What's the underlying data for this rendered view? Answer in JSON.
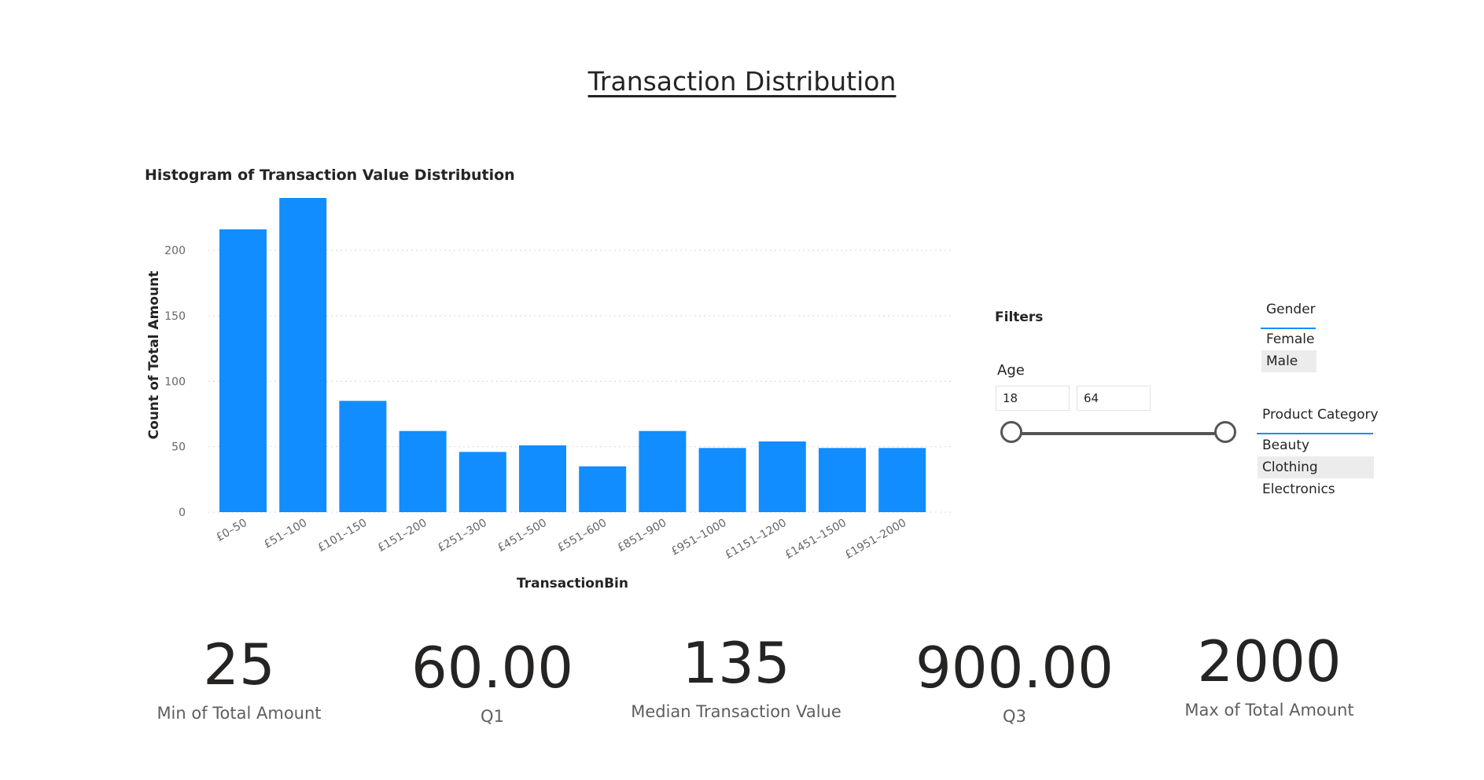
{
  "page": {
    "title": "Transaction Distribution"
  },
  "chart_data": {
    "type": "bar",
    "title": "Histogram of Transaction Value Distribution",
    "xlabel": "TransactionBin",
    "ylabel": "Count of Total Amount",
    "categories": [
      "£0–50",
      "£51–100",
      "£101–150",
      "£151–200",
      "£251–300",
      "£451–500",
      "£551–600",
      "£851–900",
      "£951–1000",
      "£1151–1200",
      "£1451–1500",
      "£1951–2000"
    ],
    "values": [
      216,
      240,
      85,
      62,
      46,
      51,
      35,
      62,
      49,
      54,
      49,
      49
    ],
    "ylim": [
      0,
      240
    ],
    "yticks": [
      0,
      50,
      100,
      150,
      200
    ],
    "grid": true,
    "bar_color": "#118DFF"
  },
  "filters": {
    "label": "Filters",
    "age": {
      "label": "Age",
      "min_value": "18",
      "max_value": "64"
    },
    "gender": {
      "header": "Gender",
      "items": [
        "Female",
        "Male"
      ],
      "selected": "Male"
    },
    "product_category": {
      "header": "Product Category",
      "items": [
        "Beauty",
        "Clothing",
        "Electronics"
      ],
      "selected": "Clothing"
    }
  },
  "kpis": [
    {
      "value": "25",
      "label": "Min of Total Amount"
    },
    {
      "value": "60.00",
      "label": "Q1"
    },
    {
      "value": "135",
      "label": "Median Transaction Value"
    },
    {
      "value": "900.00",
      "label": "Q3"
    },
    {
      "value": "2000",
      "label": "Max of Total Amount"
    }
  ]
}
